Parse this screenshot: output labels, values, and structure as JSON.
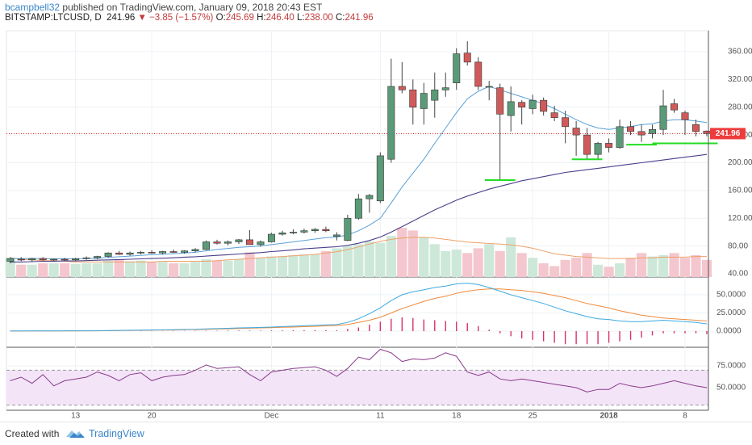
{
  "header": {
    "author": "bcampbell32",
    "published": "published on TradingView.com, January 09, 2018 20:43 EST",
    "symbol": "BITSTAMP:LTCUSD, D",
    "last": "241.96",
    "change": "−3.85 (−1.57%)",
    "open_label": "O:",
    "open": "245.69",
    "high_label": "H:",
    "high": "246.40",
    "low_label": "L:",
    "low": "238.00",
    "close_label": "C:",
    "close": "241.96"
  },
  "footer": {
    "created_with": "Created with",
    "brand": "TradingView"
  },
  "colors": {
    "up": "#5b9a78",
    "down": "#d05a5a",
    "vol_up": "#cde8d9",
    "vol_down": "#f4c6cd",
    "ma_fast": "#5aa0d6",
    "ma_slow": "#4a3f8a",
    "ma_vol": "#f0a068",
    "macd": "#3ea9e0",
    "signal": "#f08a3c",
    "hist": "#d8306e",
    "rsi": "#8a3a8a",
    "rsi_band": "#f3e4f8",
    "price_line": "#d33",
    "support": "#22dd22"
  },
  "chart_data": {
    "type": "candlestick",
    "symbol": "BITSTAMP:LTCUSD",
    "interval": "D",
    "last_price": 241.96,
    "price_axis": {
      "min": 40,
      "max": 380,
      "ticks": [
        40,
        80,
        120,
        160,
        200,
        240,
        280,
        320,
        360
      ],
      "tick_labels": [
        "40.00",
        "80.00",
        "120.00",
        "160.00",
        "200.00",
        "240.00",
        "280.00",
        "320.00",
        "360.00"
      ]
    },
    "x_axis": {
      "tick_labels": [
        {
          "label": "13",
          "index": 6
        },
        {
          "label": "20",
          "index": 13
        },
        {
          "label": "Dec",
          "index": 24
        },
        {
          "label": "11",
          "index": 34
        },
        {
          "label": "18",
          "index": 41
        },
        {
          "label": "25",
          "index": 48
        },
        {
          "label": "2018",
          "index": 55
        },
        {
          "label": "8",
          "index": 62
        }
      ]
    },
    "candles": [
      {
        "o": 58,
        "h": 64,
        "l": 55,
        "c": 62
      },
      {
        "o": 61,
        "h": 64,
        "l": 58,
        "c": 60
      },
      {
        "o": 60,
        "h": 63,
        "l": 57,
        "c": 62
      },
      {
        "o": 62,
        "h": 64,
        "l": 59,
        "c": 60
      },
      {
        "o": 60,
        "h": 62,
        "l": 58,
        "c": 61
      },
      {
        "o": 61,
        "h": 63,
        "l": 58,
        "c": 60
      },
      {
        "o": 60,
        "h": 63,
        "l": 58,
        "c": 62
      },
      {
        "o": 62,
        "h": 65,
        "l": 60,
        "c": 63
      },
      {
        "o": 63,
        "h": 66,
        "l": 61,
        "c": 65
      },
      {
        "o": 65,
        "h": 71,
        "l": 63,
        "c": 70
      },
      {
        "o": 70,
        "h": 73,
        "l": 67,
        "c": 68
      },
      {
        "o": 68,
        "h": 72,
        "l": 66,
        "c": 70
      },
      {
        "o": 70,
        "h": 73,
        "l": 68,
        "c": 71
      },
      {
        "o": 71,
        "h": 74,
        "l": 69,
        "c": 70
      },
      {
        "o": 70,
        "h": 73,
        "l": 68,
        "c": 72
      },
      {
        "o": 72,
        "h": 75,
        "l": 70,
        "c": 71
      },
      {
        "o": 71,
        "h": 74,
        "l": 69,
        "c": 73
      },
      {
        "o": 73,
        "h": 77,
        "l": 71,
        "c": 75
      },
      {
        "o": 75,
        "h": 88,
        "l": 74,
        "c": 86
      },
      {
        "o": 86,
        "h": 89,
        "l": 82,
        "c": 84
      },
      {
        "o": 84,
        "h": 88,
        "l": 81,
        "c": 86
      },
      {
        "o": 86,
        "h": 90,
        "l": 83,
        "c": 89
      },
      {
        "o": 89,
        "h": 103,
        "l": 85,
        "c": 82
      },
      {
        "o": 82,
        "h": 88,
        "l": 79,
        "c": 86
      },
      {
        "o": 86,
        "h": 99,
        "l": 85,
        "c": 97
      },
      {
        "o": 97,
        "h": 102,
        "l": 95,
        "c": 99
      },
      {
        "o": 99,
        "h": 104,
        "l": 97,
        "c": 100
      },
      {
        "o": 100,
        "h": 105,
        "l": 98,
        "c": 102
      },
      {
        "o": 102,
        "h": 106,
        "l": 99,
        "c": 104
      },
      {
        "o": 104,
        "h": 108,
        "l": 100,
        "c": 102
      },
      {
        "o": 94,
        "h": 100,
        "l": 88,
        "c": 96
      },
      {
        "o": 88,
        "h": 125,
        "l": 87,
        "c": 120
      },
      {
        "o": 120,
        "h": 155,
        "l": 118,
        "c": 148
      },
      {
        "o": 148,
        "h": 155,
        "l": 128,
        "c": 153
      },
      {
        "o": 145,
        "h": 215,
        "l": 142,
        "c": 210
      },
      {
        "o": 205,
        "h": 350,
        "l": 200,
        "c": 310
      },
      {
        "o": 310,
        "h": 345,
        "l": 300,
        "c": 305
      },
      {
        "o": 305,
        "h": 320,
        "l": 255,
        "c": 280
      },
      {
        "o": 278,
        "h": 315,
        "l": 255,
        "c": 300
      },
      {
        "o": 290,
        "h": 330,
        "l": 265,
        "c": 305
      },
      {
        "o": 305,
        "h": 330,
        "l": 295,
        "c": 308
      },
      {
        "o": 315,
        "h": 365,
        "l": 305,
        "c": 357
      },
      {
        "o": 358,
        "h": 375,
        "l": 340,
        "c": 345
      },
      {
        "o": 345,
        "h": 352,
        "l": 305,
        "c": 310
      },
      {
        "o": 309,
        "h": 318,
        "l": 290,
        "c": 310
      },
      {
        "o": 308,
        "h": 314,
        "l": 175,
        "c": 270
      },
      {
        "o": 268,
        "h": 310,
        "l": 245,
        "c": 288
      },
      {
        "o": 287,
        "h": 290,
        "l": 255,
        "c": 280
      },
      {
        "o": 278,
        "h": 298,
        "l": 270,
        "c": 290
      },
      {
        "o": 290,
        "h": 294,
        "l": 268,
        "c": 274
      },
      {
        "o": 272,
        "h": 282,
        "l": 260,
        "c": 265
      },
      {
        "o": 265,
        "h": 275,
        "l": 228,
        "c": 252
      },
      {
        "o": 250,
        "h": 260,
        "l": 210,
        "c": 240
      },
      {
        "o": 240,
        "h": 250,
        "l": 205,
        "c": 212
      },
      {
        "o": 212,
        "h": 230,
        "l": 205,
        "c": 228
      },
      {
        "o": 228,
        "h": 235,
        "l": 215,
        "c": 222
      },
      {
        "o": 222,
        "h": 262,
        "l": 220,
        "c": 252
      },
      {
        "o": 252,
        "h": 260,
        "l": 240,
        "c": 245
      },
      {
        "o": 245,
        "h": 255,
        "l": 230,
        "c": 240
      },
      {
        "o": 242,
        "h": 255,
        "l": 235,
        "c": 248
      },
      {
        "o": 248,
        "h": 305,
        "l": 240,
        "c": 282
      },
      {
        "o": 285,
        "h": 292,
        "l": 272,
        "c": 276
      },
      {
        "o": 272,
        "h": 275,
        "l": 240,
        "c": 262
      },
      {
        "o": 255,
        "h": 262,
        "l": 238,
        "c": 245
      },
      {
        "o": 245.69,
        "h": 246.4,
        "l": 238,
        "c": 241.96
      }
    ],
    "ma_fast": [
      62,
      62,
      62,
      62,
      61.5,
      61.5,
      61.5,
      62,
      62.5,
      63.5,
      64.5,
      65.5,
      66.5,
      67.5,
      68,
      69,
      70,
      71,
      73,
      75,
      76.5,
      78,
      79,
      80,
      82,
      84,
      86,
      88,
      90,
      92,
      93,
      96,
      102,
      110,
      120,
      142,
      165,
      185,
      205,
      228,
      250,
      272,
      292,
      303,
      310,
      305,
      300,
      295,
      290,
      285,
      278,
      270,
      262,
      255,
      250,
      248,
      250,
      252,
      255,
      256,
      260,
      262,
      262,
      260,
      258
    ],
    "ma_slow": [
      57,
      57,
      57.5,
      58,
      58,
      58.5,
      58.5,
      59,
      59.5,
      60,
      60.5,
      61,
      61.5,
      62,
      62.5,
      63,
      64,
      64.5,
      65.5,
      66.5,
      67.5,
      68.5,
      69.5,
      70.5,
      72,
      73,
      74.5,
      76,
      77,
      78,
      79,
      81,
      84,
      88,
      93,
      100,
      108,
      116,
      124,
      132,
      139,
      146,
      152,
      157,
      162,
      166,
      170,
      174,
      177,
      180,
      183,
      186,
      188,
      190,
      192,
      194,
      196,
      198,
      200,
      202,
      204,
      206,
      208,
      210,
      212
    ],
    "volume": {
      "values": [
        28,
        18,
        18,
        20,
        20,
        20,
        19,
        20,
        20,
        24,
        26,
        23,
        24,
        22,
        22,
        20,
        20,
        22,
        26,
        24,
        24,
        26,
        36,
        28,
        30,
        30,
        32,
        33,
        33,
        38,
        42,
        45,
        48,
        52,
        50,
        60,
        72,
        68,
        58,
        48,
        38,
        40,
        35,
        42,
        48,
        38,
        58,
        35,
        28,
        20,
        16,
        25,
        28,
        35,
        18,
        15,
        20,
        28,
        35,
        30,
        32,
        35,
        28,
        32,
        25
      ],
      "up": [
        true,
        false,
        true,
        false,
        true,
        false,
        true,
        true,
        true,
        true,
        false,
        true,
        true,
        false,
        true,
        false,
        true,
        true,
        true,
        false,
        true,
        true,
        false,
        true,
        true,
        true,
        true,
        true,
        true,
        false,
        true,
        true,
        true,
        true,
        true,
        true,
        false,
        false,
        true,
        true,
        true,
        true,
        false,
        false,
        true,
        false,
        true,
        false,
        true,
        false,
        false,
        false,
        false,
        false,
        true,
        false,
        true,
        false,
        false,
        true,
        true,
        false,
        false,
        false,
        false
      ],
      "ma": [
        28,
        26,
        25,
        24,
        24,
        23,
        22,
        22,
        22,
        22,
        22,
        22,
        22,
        22,
        23,
        23,
        23,
        23,
        23,
        24,
        25,
        26,
        27,
        28,
        29,
        30,
        31,
        32,
        33,
        35,
        37,
        40,
        44,
        48,
        52,
        55,
        57,
        58,
        58,
        57,
        55,
        53,
        51,
        50,
        49,
        48,
        47,
        45,
        42,
        38,
        34,
        32,
        30,
        29,
        28,
        27,
        27,
        27,
        28,
        28,
        29,
        29,
        29,
        30,
        30
      ]
    },
    "macd_axis": {
      "min": -12,
      "max": 68,
      "ticks": [
        0,
        25,
        50
      ],
      "tick_labels": [
        "0.0000",
        "25.0000",
        "50.0000"
      ]
    },
    "macd": [
      0.2,
      0.2,
      0.3,
      0.3,
      0.3,
      0.4,
      0.4,
      0.5,
      0.6,
      0.8,
      1.0,
      1.2,
      1.4,
      1.6,
      1.8,
      2.0,
      2.3,
      2.6,
      3.1,
      3.5,
      3.9,
      4.4,
      4.8,
      5.1,
      5.6,
      6.2,
      6.8,
      7.4,
      8.0,
      8.7,
      9.0,
      12,
      17,
      24,
      32,
      42,
      50,
      54,
      57,
      60,
      62,
      65,
      66,
      64,
      60,
      55,
      50,
      46,
      42,
      38,
      33,
      28,
      24,
      20,
      17,
      16,
      14,
      13,
      13,
      14,
      15,
      14,
      13,
      12,
      10
    ],
    "signal": [
      0.1,
      0.1,
      0.2,
      0.2,
      0.3,
      0.3,
      0.3,
      0.4,
      0.5,
      0.6,
      0.8,
      1.0,
      1.1,
      1.3,
      1.5,
      1.6,
      1.9,
      2.1,
      2.5,
      2.9,
      3.2,
      3.6,
      4.0,
      4.4,
      4.7,
      5.2,
      5.6,
      6.1,
      6.6,
      7.2,
      7.8,
      9,
      12,
      15,
      19,
      25,
      31,
      36,
      41,
      45,
      48,
      52,
      55,
      57,
      58,
      58,
      57,
      56,
      54,
      52,
      49,
      46,
      42,
      38,
      35,
      32,
      28,
      25,
      22,
      20,
      18,
      17,
      16,
      15,
      14
    ],
    "rsi_axis": {
      "min": 20,
      "max": 105,
      "ticks": [
        50,
        75
      ],
      "tick_labels": [
        "50.0000",
        "75.0000"
      ],
      "band": [
        30,
        70
      ]
    },
    "rsi": [
      58,
      62,
      55,
      65,
      52,
      58,
      60,
      62,
      68,
      64,
      58,
      65,
      67,
      58,
      62,
      64,
      65,
      70,
      76,
      72,
      73,
      74,
      65,
      58,
      68,
      70,
      72,
      73,
      74,
      70,
      63,
      72,
      85,
      82,
      94,
      90,
      80,
      83,
      82,
      84,
      90,
      86,
      68,
      64,
      68,
      60,
      58,
      60,
      58,
      56,
      54,
      52,
      50,
      45,
      48,
      48,
      55,
      52,
      50,
      52,
      55,
      58,
      55,
      52,
      50
    ]
  }
}
